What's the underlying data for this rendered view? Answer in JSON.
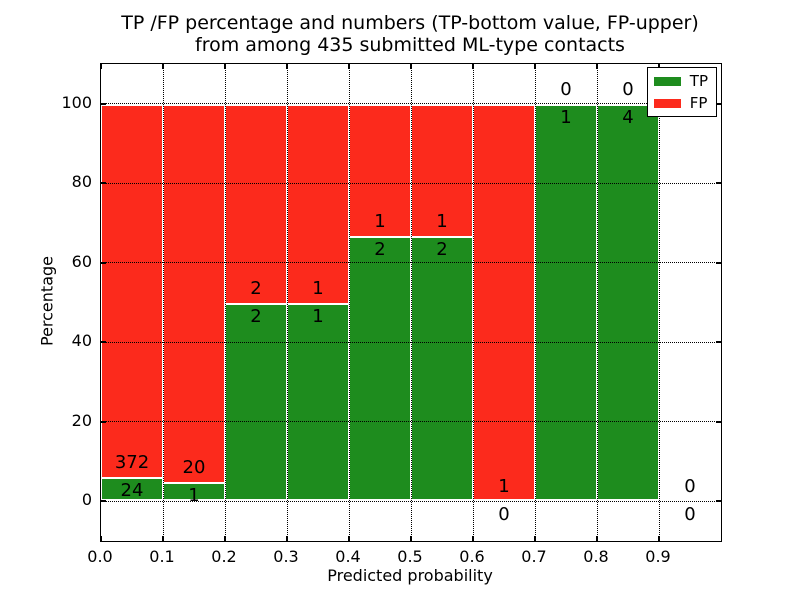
{
  "title": {
    "line1": "TP /FP percentage and numbers (TP-bottom value, FP-upper)",
    "line2": "from among 435 submitted ML-type contacts"
  },
  "chart_data": {
    "type": "bar",
    "subtype": "stacked-percentage-histogram",
    "title": "TP /FP percentage and numbers (TP-bottom value, FP-upper)\nfrom among 435 submitted ML-type contacts",
    "xlabel": "Predicted probability",
    "ylabel": "Percentage",
    "total_contacts": 435,
    "xlim": [
      0.0,
      1.0
    ],
    "ylim": [
      -10,
      110
    ],
    "grid": true,
    "grid_style": "dotted",
    "xticks": {
      "values": [
        0.0,
        0.1,
        0.2,
        0.3,
        0.4,
        0.5,
        0.6,
        0.7,
        0.8,
        0.9
      ],
      "labels": [
        "0.0",
        "0.1",
        "0.2",
        "0.3",
        "0.4",
        "0.5",
        "0.6",
        "0.7",
        "0.8",
        "0.9"
      ]
    },
    "yticks": {
      "values": [
        0,
        20,
        40,
        60,
        80,
        100
      ],
      "labels": [
        "0",
        "20",
        "40",
        "60",
        "80",
        "100"
      ]
    },
    "bin_width": 0.1,
    "bins": [
      {
        "x0": 0.0,
        "x1": 0.1,
        "tp": 24,
        "fp": 372,
        "tp_percent": 6.06,
        "fp_percent": 93.94
      },
      {
        "x0": 0.1,
        "x1": 0.2,
        "tp": 1,
        "fp": 20,
        "tp_percent": 4.76,
        "fp_percent": 95.24
      },
      {
        "x0": 0.2,
        "x1": 0.3,
        "tp": 2,
        "fp": 2,
        "tp_percent": 50.0,
        "fp_percent": 50.0
      },
      {
        "x0": 0.3,
        "x1": 0.4,
        "tp": 1,
        "fp": 1,
        "tp_percent": 50.0,
        "fp_percent": 50.0
      },
      {
        "x0": 0.4,
        "x1": 0.5,
        "tp": 2,
        "fp": 1,
        "tp_percent": 66.67,
        "fp_percent": 33.33
      },
      {
        "x0": 0.5,
        "x1": 0.6,
        "tp": 2,
        "fp": 1,
        "tp_percent": 66.67,
        "fp_percent": 33.33
      },
      {
        "x0": 0.6,
        "x1": 0.7,
        "tp": 0,
        "fp": 1,
        "tp_percent": 0.0,
        "fp_percent": 100.0
      },
      {
        "x0": 0.7,
        "x1": 0.8,
        "tp": 1,
        "fp": 0,
        "tp_percent": 100.0,
        "fp_percent": 0.0
      },
      {
        "x0": 0.8,
        "x1": 0.9,
        "tp": 4,
        "fp": 0,
        "tp_percent": 100.0,
        "fp_percent": 0.0
      },
      {
        "x0": 0.9,
        "x1": 1.0,
        "tp": 0,
        "fp": 0,
        "tp_percent": null,
        "fp_percent": null
      }
    ],
    "legend": {
      "position": "upper-right",
      "entries": [
        {
          "label": "TP",
          "color": "#1e8c1e"
        },
        {
          "label": "FP",
          "color": "#fc2a1c"
        }
      ]
    },
    "colors": {
      "tp_bar": "#1e8c1e",
      "fp_bar": "#fc2a1c",
      "bar_edge": "#ffffff",
      "grid": "#000000",
      "background": "#ffffff",
      "text": "#000000"
    }
  }
}
